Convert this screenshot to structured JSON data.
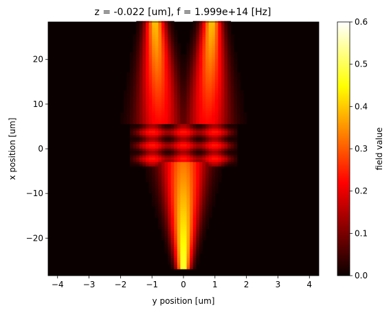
{
  "chart_data": {
    "type": "heatmap",
    "title": "z = -0.022 [um], f = 1.999e+14 [Hz]",
    "xlabel": "y position [um]",
    "ylabel": "x position [um]",
    "xlim": [
      -4.3,
      4.3
    ],
    "ylim": [
      -28.4,
      28.4
    ],
    "x_ticks": [
      -4,
      -3,
      -2,
      -1,
      0,
      1,
      2,
      3,
      4
    ],
    "x_tick_labels": [
      "−4",
      "−3",
      "−2",
      "−1",
      "0",
      "1",
      "2",
      "3",
      "4"
    ],
    "y_ticks": [
      20,
      10,
      0,
      -10,
      -20
    ],
    "y_tick_labels": [
      "20",
      "10",
      "0",
      "−10",
      "−20"
    ],
    "colormap": "hot",
    "colorbar": {
      "label": "field value",
      "range": [
        0.0,
        0.6
      ],
      "ticks": [
        0.0,
        0.1,
        0.2,
        0.3,
        0.4,
        0.5,
        0.6
      ],
      "tick_labels": [
        "0.0",
        "0.1",
        "0.2",
        "0.3",
        "0.4",
        "0.5",
        "0.6"
      ]
    },
    "features": [
      {
        "kind": "input-waveguide",
        "y_center": 0.0,
        "x_range": [
          -27.0,
          -3.0
        ],
        "width_range": [
          0.2,
          0.7
        ],
        "peak_value": 0.5
      },
      {
        "kind": "splitter-region",
        "y_range": [
          -1.75,
          1.75
        ],
        "x_range": [
          -4.0,
          5.5
        ],
        "mean_value": 0.2
      },
      {
        "kind": "output-arm",
        "y_center": -0.9,
        "x_range": [
          5.5,
          28.4
        ],
        "width_range": [
          0.7,
          0.3
        ],
        "peak_value": 0.4
      },
      {
        "kind": "output-arm",
        "y_center": 0.9,
        "x_range": [
          5.5,
          28.4
        ],
        "width_range": [
          0.7,
          0.3
        ],
        "peak_value": 0.4
      }
    ]
  }
}
